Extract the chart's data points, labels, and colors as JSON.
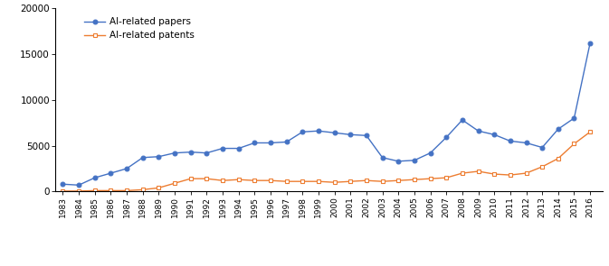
{
  "years": [
    1983,
    1984,
    1985,
    1986,
    1987,
    1988,
    1989,
    1990,
    1991,
    1992,
    1993,
    1994,
    1995,
    1996,
    1997,
    1998,
    1999,
    2000,
    2001,
    2002,
    2003,
    2004,
    2005,
    2006,
    2007,
    2008,
    2009,
    2010,
    2011,
    2012,
    2013,
    2014,
    2015,
    2016
  ],
  "papers": [
    800,
    700,
    1500,
    2000,
    2500,
    3700,
    3800,
    4200,
    4300,
    4200,
    4700,
    4700,
    5300,
    5300,
    5400,
    6500,
    6600,
    6400,
    6200,
    6100,
    3700,
    3300,
    3400,
    4200,
    5900,
    7800,
    6600,
    6200,
    5500,
    5300,
    4800,
    6800,
    8000,
    16200
  ],
  "patents": [
    50,
    50,
    100,
    100,
    100,
    200,
    400,
    900,
    1400,
    1400,
    1200,
    1300,
    1200,
    1200,
    1100,
    1100,
    1100,
    1000,
    1100,
    1200,
    1100,
    1200,
    1300,
    1400,
    1500,
    2000,
    2200,
    1900,
    1800,
    2000,
    2700,
    3600,
    5200,
    6500
  ],
  "papers_color": "#4472C4",
  "patents_color": "#ED7D31",
  "papers_label": "AI-related papers",
  "patents_label": "AI-related patents",
  "ylim": [
    0,
    20000
  ],
  "yticks": [
    0,
    5000,
    10000,
    15000,
    20000
  ],
  "ytick_labels": [
    "0",
    "5000",
    "10000",
    "15000",
    "20000"
  ],
  "bg_color": "#ffffff"
}
